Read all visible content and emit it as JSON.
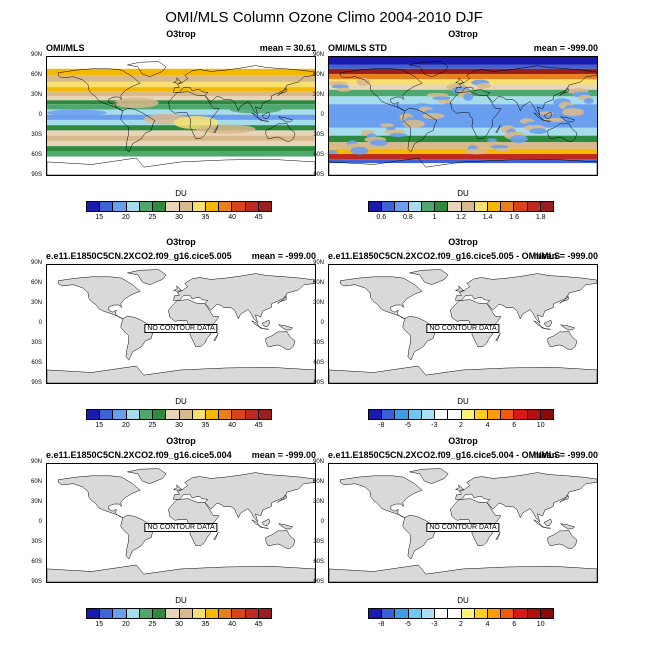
{
  "figure": {
    "title": "OMI/MLS Column Ozone Climo 2004-2010 DJF"
  },
  "panels": [
    {
      "title": "O3trop",
      "left_label": "OMI/MLS",
      "right_label": "mean = 30.61",
      "type": "field",
      "no_data": "",
      "unit": "DU",
      "colorbar": "ozone",
      "colorbar_ticks": [
        "15",
        "20",
        "25",
        "30",
        "35",
        "40",
        "45"
      ]
    },
    {
      "title": "O3trop",
      "left_label": "OMI/MLS STD",
      "right_label": "mean = -999.00",
      "type": "std",
      "no_data": "",
      "unit": "DU",
      "colorbar": "std",
      "colorbar_ticks": [
        "0.6",
        "0.8",
        "1",
        "1.2",
        "1.4",
        "1.6",
        "1.8"
      ]
    },
    {
      "title": "O3trop",
      "left_label": "e.e11.E1850C5CN.2XCO2.f09_g16.cice5.005",
      "right_label": "mean = -999.00",
      "type": "empty",
      "no_data": "NO CONTOUR DATA",
      "unit": "DU",
      "colorbar": "ozone",
      "colorbar_ticks": [
        "15",
        "20",
        "25",
        "30",
        "35",
        "40",
        "45"
      ]
    },
    {
      "title": "O3trop",
      "left_label": "e.e11.E1850C5CN.2XCO2.f09_g16.cice5.005 - OMI/MLS",
      "right_label": "mean = -999.00",
      "type": "empty",
      "no_data": "NO CONTOUR DATA",
      "unit": "DU",
      "colorbar": "diff",
      "colorbar_ticks": [
        "-8",
        "-5",
        "-3",
        "2",
        "4",
        "6",
        "10"
      ]
    },
    {
      "title": "O3trop",
      "left_label": "e.e11.E1850C5CN.2XCO2.f09_g16.cice5.004",
      "right_label": "mean = -999.00",
      "type": "empty",
      "no_data": "NO CONTOUR DATA",
      "unit": "DU",
      "colorbar": "ozone",
      "colorbar_ticks": [
        "15",
        "20",
        "25",
        "30",
        "35",
        "40",
        "45"
      ]
    },
    {
      "title": "O3trop",
      "left_label": "e.e11.E1850C5CN.2XCO2.f09_g16.cice5.004 - OMI/MLS",
      "right_label": "mean = -999.00",
      "type": "empty",
      "no_data": "NO CONTOUR DATA",
      "unit": "DU",
      "colorbar": "diff",
      "colorbar_ticks": [
        "-8",
        "-5",
        "-3",
        "2",
        "4",
        "6",
        "10"
      ]
    }
  ],
  "lat_labels": [
    "90N",
    "60N",
    "30N",
    "0",
    "30S",
    "60S",
    "90S"
  ],
  "colorbars": {
    "ozone": [
      "#1a1aae",
      "#3e63d6",
      "#6a9ff0",
      "#a7dcec",
      "#4ea86e",
      "#2e8b3e",
      "#e8d4b8",
      "#d8b98c",
      "#f7e070",
      "#f5b800",
      "#e98020",
      "#d8421c",
      "#bf2a1e",
      "#9a1e1e"
    ],
    "std": [
      "#1a1aae",
      "#3e63d6",
      "#6a9ff0",
      "#a7dcec",
      "#4ea86e",
      "#2e8b3e",
      "#e8d4b8",
      "#d8b98c",
      "#f7e070",
      "#f5b800",
      "#e98020",
      "#d8421c",
      "#bf2a1e",
      "#9a1e1e"
    ],
    "diff": [
      "#1a1aae",
      "#3a5fd8",
      "#3d9ee8",
      "#6ec8f0",
      "#a9e0f4",
      "#ffffff",
      "#ffffff",
      "#fff07a",
      "#ffcc22",
      "#ff9a10",
      "#f05a10",
      "#d81818",
      "#b01010",
      "#8a0a0a"
    ]
  }
}
